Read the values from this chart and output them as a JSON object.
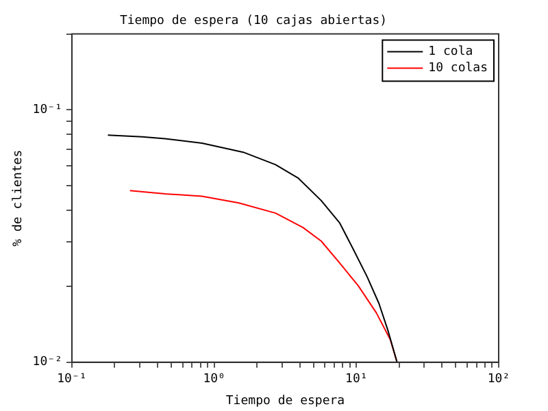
{
  "chart_data": {
    "type": "line",
    "title": "Tiempo de espera (10 cajas abiertas)",
    "xlabel": "Tiempo de espera",
    "ylabel": "% de clientes",
    "log": "xy",
    "grid": false,
    "legend": "top right",
    "marker": "none",
    "line_style": "solid",
    "xlim": [
      0.1,
      100
    ],
    "xticks": [
      {
        "value": 0.1,
        "label": "10⁻¹"
      },
      {
        "value": 0.2,
        "label": null
      },
      {
        "value": 0.3,
        "label": null
      },
      {
        "value": 0.4,
        "label": null
      },
      {
        "value": 0.5,
        "label": null
      },
      {
        "value": 0.6,
        "label": null
      },
      {
        "value": 0.7,
        "label": null
      },
      {
        "value": 0.8,
        "label": null
      },
      {
        "value": 0.9,
        "label": null
      },
      {
        "value": 1,
        "label": "10⁰"
      },
      {
        "value": 2,
        "label": null
      },
      {
        "value": 3,
        "label": null
      },
      {
        "value": 4,
        "label": null
      },
      {
        "value": 5,
        "label": null
      },
      {
        "value": 6,
        "label": null
      },
      {
        "value": 7,
        "label": null
      },
      {
        "value": 8,
        "label": null
      },
      {
        "value": 9,
        "label": null
      },
      {
        "value": 10,
        "label": "10¹"
      },
      {
        "value": 20,
        "label": null
      },
      {
        "value": 30,
        "label": null
      },
      {
        "value": 40,
        "label": null
      },
      {
        "value": 50,
        "label": null
      },
      {
        "value": 60,
        "label": null
      },
      {
        "value": 70,
        "label": null
      },
      {
        "value": 80,
        "label": null
      },
      {
        "value": 90,
        "label": null
      },
      {
        "value": 100,
        "label": "10²"
      }
    ],
    "ylim": [
      0.01,
      0.2
    ],
    "yticks": [
      {
        "value": 0.01,
        "label": "10⁻²"
      },
      {
        "value": 0.02,
        "label": null
      },
      {
        "value": 0.03,
        "label": null
      },
      {
        "value": 0.04,
        "label": null
      },
      {
        "value": 0.05,
        "label": null
      },
      {
        "value": 0.06,
        "label": null
      },
      {
        "value": 0.07,
        "label": null
      },
      {
        "value": 0.08,
        "label": null
      },
      {
        "value": 0.09,
        "label": null
      },
      {
        "value": 0.1,
        "label": "10⁻¹"
      },
      {
        "value": 0.2,
        "label": null
      }
    ],
    "series": [
      {
        "name": "1 cola",
        "color": "#000000",
        "x": [
          0.179,
          0.313,
          0.453,
          0.822,
          1.6,
          2.7,
          3.91,
          5.66,
          7.64,
          9.55,
          11.9,
          14.4,
          16.7,
          19.3
        ],
        "values": [
          0.0795,
          0.0782,
          0.0769,
          0.0738,
          0.068,
          0.0607,
          0.0536,
          0.0437,
          0.0356,
          0.0279,
          0.0218,
          0.0171,
          0.0133,
          0.01
        ]
      },
      {
        "name": "10 colas",
        "color": "#ff0000",
        "x": [
          0.256,
          0.453,
          0.822,
          1.49,
          2.7,
          4.21,
          5.66,
          7.64,
          10.3,
          13.8,
          17.3,
          19.3
        ],
        "values": [
          0.0479,
          0.0465,
          0.0455,
          0.0428,
          0.039,
          0.0342,
          0.0302,
          0.0247,
          0.0201,
          0.0157,
          0.0123,
          0.01
        ]
      }
    ]
  }
}
